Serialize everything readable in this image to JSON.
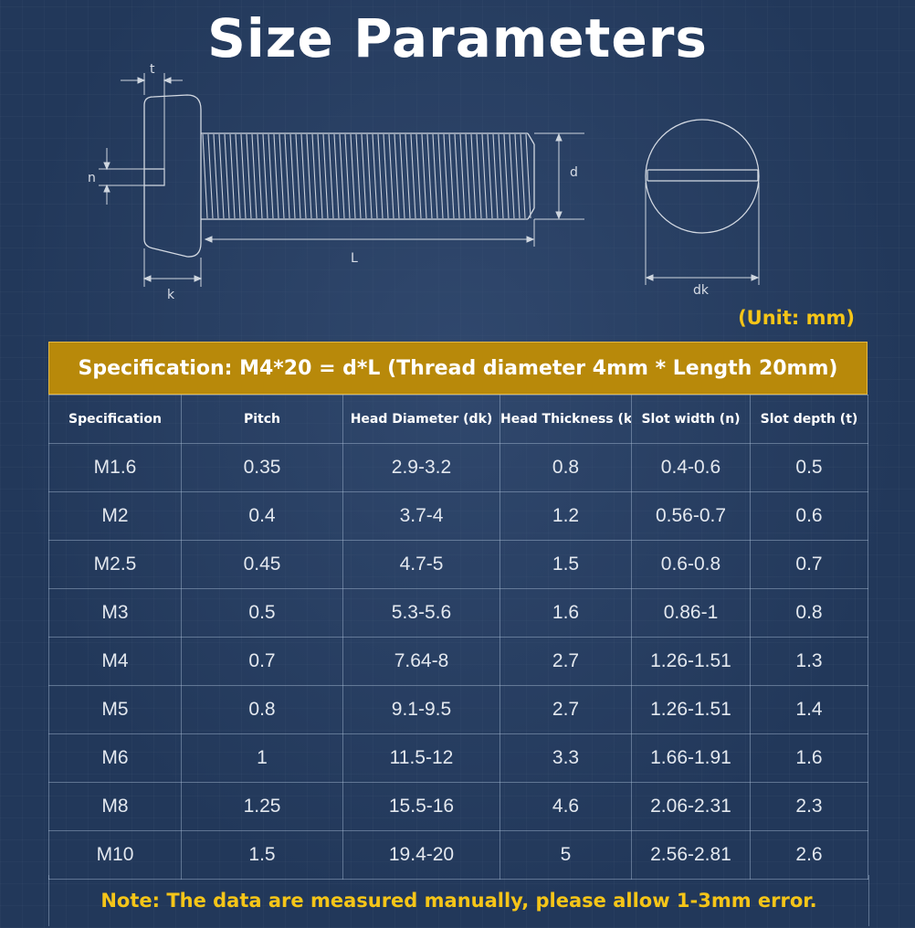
{
  "title": "Size Parameters",
  "diagram": {
    "labels": {
      "t": "t",
      "n": "n",
      "k": "k",
      "L": "L",
      "d": "d",
      "dk": "dk"
    }
  },
  "unit_label": "(Unit: mm)",
  "spec_banner": "Specification: M4*20 = d*L (Thread diameter 4mm * Length 20mm)",
  "table": {
    "headers": [
      "Specification",
      "Pitch",
      "Head Diameter (dk)",
      "Head Thickness (k)",
      "Slot width (n)",
      "Slot depth (t)"
    ],
    "rows": [
      [
        "M1.6",
        "0.35",
        "2.9-3.2",
        "0.8",
        "0.4-0.6",
        "0.5"
      ],
      [
        "M2",
        "0.4",
        "3.7-4",
        "1.2",
        "0.56-0.7",
        "0.6"
      ],
      [
        "M2.5",
        "0.45",
        "4.7-5",
        "1.5",
        "0.6-0.8",
        "0.7"
      ],
      [
        "M3",
        "0.5",
        "5.3-5.6",
        "1.6",
        "0.86-1",
        "0.8"
      ],
      [
        "M4",
        "0.7",
        "7.64-8",
        "2.7",
        "1.26-1.51",
        "1.3"
      ],
      [
        "M5",
        "0.8",
        "9.1-9.5",
        "2.7",
        "1.26-1.51",
        "1.4"
      ],
      [
        "M6",
        "1",
        "11.5-12",
        "3.3",
        "1.66-1.91",
        "1.6"
      ],
      [
        "M8",
        "1.25",
        "15.5-16",
        "4.6",
        "2.06-2.31",
        "2.3"
      ],
      [
        "M10",
        "1.5",
        "19.4-20",
        "5",
        "2.56-2.81",
        "2.6"
      ]
    ]
  },
  "note": "Note: The data are measured manually, please allow 1-3mm error.",
  "colors": {
    "background": "#22385a",
    "accent_gold": "#b8890a",
    "note_yellow": "#f5c518"
  }
}
